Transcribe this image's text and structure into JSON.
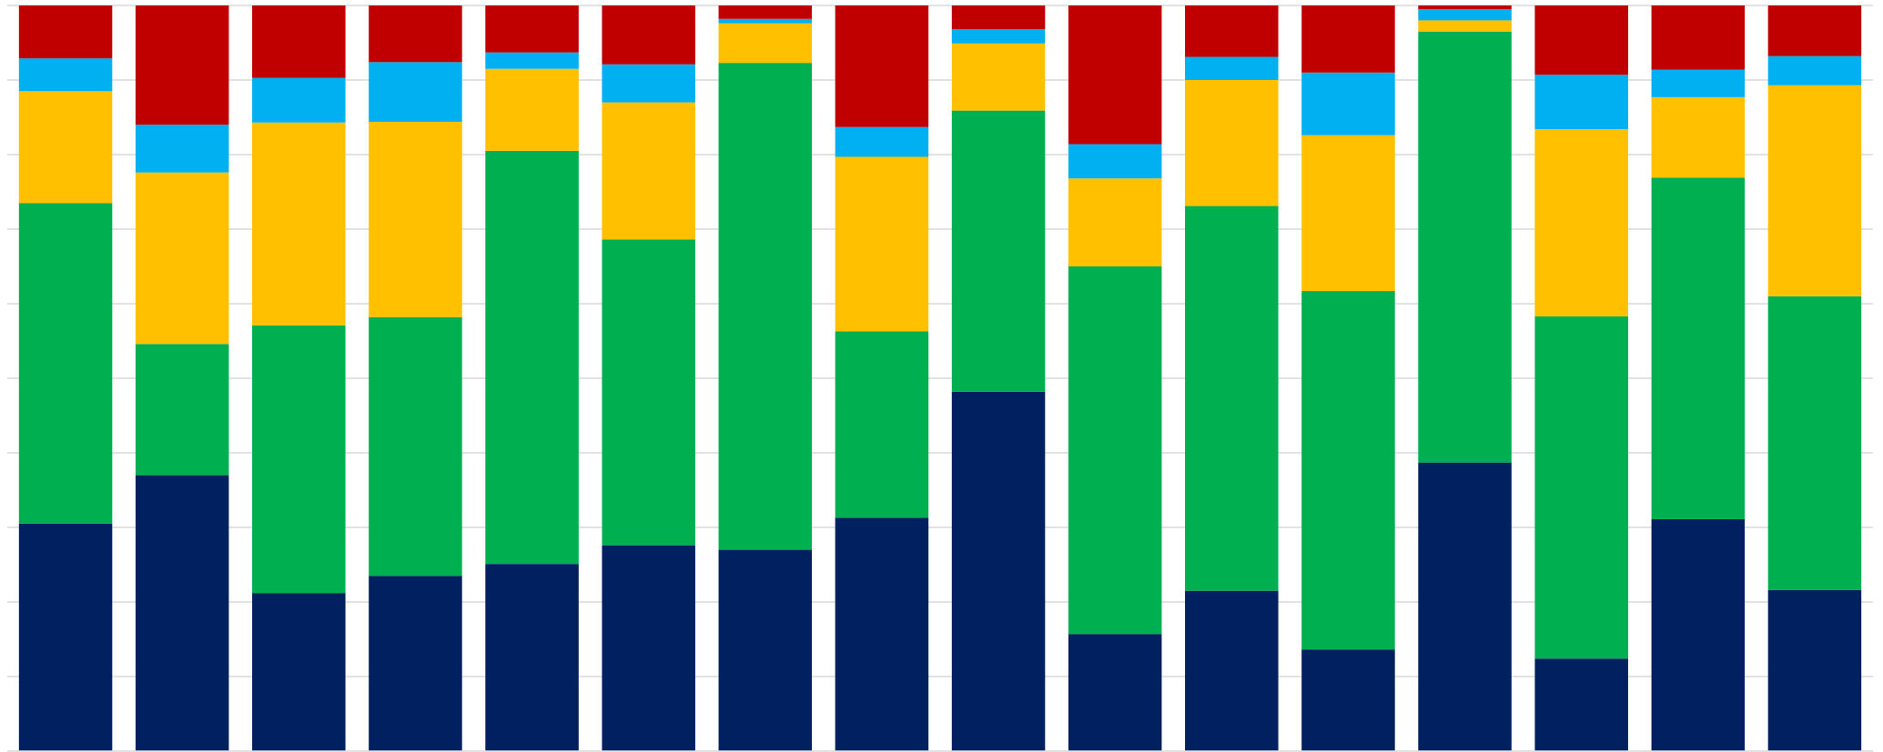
{
  "chart_data": {
    "type": "bar",
    "stacked": true,
    "normalized": true,
    "ylim": [
      0,
      100
    ],
    "grid": true,
    "legend": "none",
    "title": "",
    "xlabel": "",
    "ylabel": "",
    "categories": [
      "",
      "",
      "",
      "",
      "",
      "",
      "",
      "",
      "",
      "",
      "",
      "",
      "",
      "",
      "",
      ""
    ],
    "series": [
      {
        "color": "#002060",
        "values": [
          30.5,
          37.0,
          21.2,
          23.5,
          25.1,
          27.6,
          27.0,
          31.3,
          48.2,
          15.7,
          21.5,
          13.6,
          38.7,
          12.4,
          31.1,
          21.6
        ]
      },
      {
        "color": "#00B050",
        "values": [
          43.0,
          17.6,
          35.9,
          34.7,
          55.4,
          41.0,
          65.3,
          25.0,
          37.7,
          49.3,
          51.6,
          48.1,
          57.8,
          45.9,
          45.8,
          39.4
        ]
      },
      {
        "color": "#FFC000",
        "values": [
          15.0,
          23.0,
          27.2,
          26.2,
          11.0,
          18.4,
          5.3,
          23.4,
          9.0,
          11.8,
          16.9,
          20.9,
          1.5,
          25.1,
          10.8,
          28.3
        ]
      },
      {
        "color": "#00B0F0",
        "values": [
          4.4,
          6.4,
          6.0,
          8.0,
          2.2,
          5.1,
          0.6,
          4.0,
          1.9,
          4.6,
          3.1,
          8.4,
          1.5,
          7.3,
          3.7,
          3.9
        ]
      },
      {
        "color": "#C00000",
        "values": [
          7.1,
          16.0,
          9.7,
          7.6,
          6.3,
          7.9,
          1.8,
          16.3,
          3.2,
          18.6,
          6.9,
          9.0,
          0.5,
          9.3,
          8.6,
          6.8
        ]
      }
    ]
  }
}
